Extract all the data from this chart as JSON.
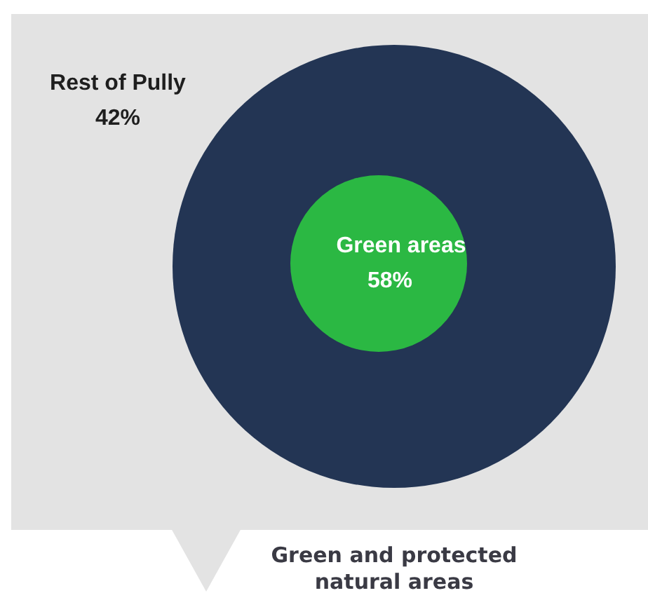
{
  "chart_data": {
    "type": "other",
    "categories": [
      "Rest of Pully",
      "Green areas"
    ],
    "values": [
      42,
      58
    ],
    "value_labels": [
      "42%",
      "58%"
    ],
    "colors": [
      "#233554",
      "#2bb843"
    ],
    "annotations": [
      "Green and protected natural areas"
    ]
  }
}
